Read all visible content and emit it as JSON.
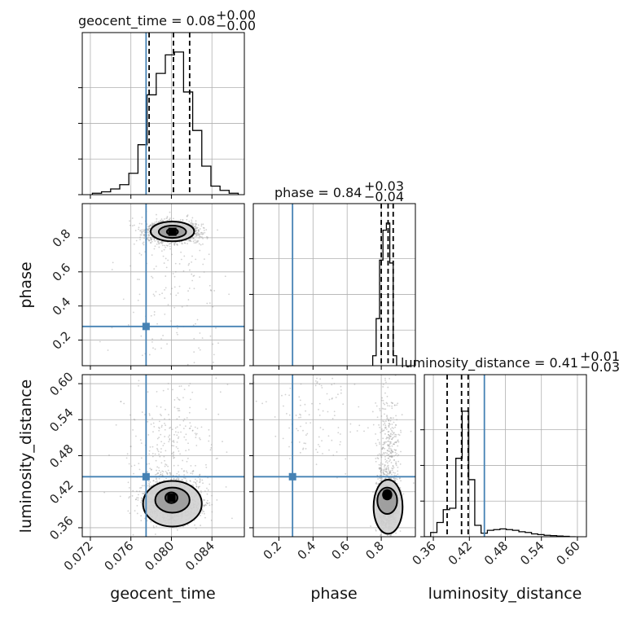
{
  "chart_data": {
    "type": "corner",
    "parameters": [
      "geocent_time",
      "phase",
      "luminosity_distance"
    ],
    "truths": {
      "geocent_time": 0.0775,
      "phase": 0.28,
      "luminosity_distance": 0.445
    },
    "colors": {
      "truth": "#4682b4",
      "hist": "#000000",
      "grid": "#b0b0b0",
      "samples": "#9a9a9a"
    },
    "grid": true,
    "titles": {
      "geocent_time": {
        "label": "geocent_time = 0.08",
        "plus": "+0.00",
        "minus": "−0.00"
      },
      "phase": {
        "label": "phase = 0.84",
        "plus": "+0.03",
        "minus": "−0.04"
      },
      "luminosity_distance": {
        "label": "luminosity_distance = 0.41",
        "plus": "+0.01",
        "minus": "−0.03"
      }
    },
    "ranges": {
      "geocent_time": [
        0.0712,
        0.0872
      ],
      "phase": [
        0.05,
        1.0
      ],
      "luminosity_distance": [
        0.345,
        0.615
      ]
    },
    "ticks": {
      "geocent_time": [
        "0.072",
        "0.076",
        "0.080",
        "0.084"
      ],
      "phase": [
        "0.2",
        "0.4",
        "0.6",
        "0.8"
      ],
      "luminosity_distance": [
        "0.36",
        "0.42",
        "0.48",
        "0.54",
        "0.60"
      ]
    },
    "quantiles": {
      "geocent_time": [
        0.0778,
        0.0802,
        0.0818
      ],
      "phase": [
        0.8,
        0.84,
        0.87
      ],
      "luminosity_distance": [
        0.383,
        0.407,
        0.418
      ]
    },
    "histograms": {
      "geocent_time": {
        "edges": [
          0.0722,
          0.0731,
          0.074,
          0.0749,
          0.0758,
          0.0767,
          0.0776,
          0.0785,
          0.0794,
          0.0803,
          0.0812,
          0.0821,
          0.083,
          0.0839,
          0.0848,
          0.0857,
          0.0866
        ],
        "counts": [
          0.01,
          0.02,
          0.04,
          0.07,
          0.15,
          0.35,
          0.7,
          0.85,
          0.98,
          1.0,
          0.72,
          0.45,
          0.2,
          0.06,
          0.03,
          0.01
        ]
      },
      "phase": {
        "edges": [
          0.75,
          0.77,
          0.79,
          0.81,
          0.83,
          0.85,
          0.87,
          0.89
        ],
        "counts": [
          0.07,
          0.33,
          0.74,
          0.95,
          1.0,
          0.72,
          0.07
        ]
      },
      "luminosity_distance": {
        "edges": [
          0.345,
          0.3555,
          0.366,
          0.3765,
          0.387,
          0.3975,
          0.408,
          0.4185,
          0.429,
          0.4395,
          0.45,
          0.4605,
          0.471,
          0.4815,
          0.492,
          0.5025,
          0.513,
          0.5235,
          0.534,
          0.5445,
          0.555,
          0.5655,
          0.576,
          0.5865,
          0.597
        ],
        "counts": [
          0.0,
          0.03,
          0.1,
          0.19,
          0.2,
          0.55,
          0.88,
          0.4,
          0.08,
          0.025,
          0.045,
          0.05,
          0.055,
          0.05,
          0.045,
          0.035,
          0.03,
          0.02,
          0.015,
          0.01,
          0.008,
          0.005,
          0.003,
          0.0
        ]
      }
    },
    "samples_2d": [
      {
        "x": "geocent_time",
        "y": "phase",
        "n": 1700,
        "components": [
          {
            "w": 0.92,
            "mx": 0.0801,
            "sx": 0.00125,
            "my": 0.835,
            "sy": 0.03
          },
          {
            "w": 0.08,
            "mx": 0.08,
            "sx": 0.0028,
            "my": 0.5,
            "sy": 0.28
          }
        ],
        "contours": [
          {
            "cx": 0.0801,
            "cy": 0.835,
            "rx": 0.00055,
            "ry": 0.018
          },
          {
            "cx": 0.0801,
            "cy": 0.835,
            "rx": 0.00135,
            "ry": 0.036
          },
          {
            "cx": 0.0801,
            "cy": 0.837,
            "rx": 0.00215,
            "ry": 0.058
          }
        ]
      },
      {
        "x": "geocent_time",
        "y": "luminosity_distance",
        "n": 1700,
        "components": [
          {
            "w": 0.82,
            "mx": 0.0801,
            "sx": 0.0014,
            "my": 0.405,
            "sy": 0.018
          },
          {
            "w": 0.18,
            "mx": 0.08,
            "sx": 0.0022,
            "my": 0.49,
            "sy": 0.055
          }
        ],
        "contours": [
          {
            "cx": 0.08,
            "cy": 0.41,
            "rx": 0.0006,
            "ry": 0.009
          },
          {
            "cx": 0.0801,
            "cy": 0.406,
            "rx": 0.0017,
            "ry": 0.021
          },
          {
            "cx": 0.0801,
            "cy": 0.4,
            "rx": 0.0029,
            "ry": 0.038
          }
        ]
      },
      {
        "x": "phase",
        "y": "luminosity_distance",
        "n": 1700,
        "components": [
          {
            "w": 0.7,
            "mx": 0.84,
            "sx": 0.03,
            "my": 0.4,
            "sy": 0.022
          },
          {
            "w": 0.22,
            "mx": 0.84,
            "sx": 0.035,
            "my": 0.48,
            "sy": 0.05
          },
          {
            "w": 0.08,
            "mx": 0.45,
            "sx": 0.15,
            "my": 0.55,
            "sy": 0.05
          }
        ],
        "contours": [
          {
            "cx": 0.835,
            "cy": 0.415,
            "rx": 0.025,
            "ry": 0.008
          },
          {
            "cx": 0.835,
            "cy": 0.405,
            "rx": 0.058,
            "ry": 0.022
          },
          {
            "cx": 0.84,
            "cy": 0.395,
            "rx": 0.085,
            "ry": 0.045
          }
        ]
      }
    ]
  }
}
